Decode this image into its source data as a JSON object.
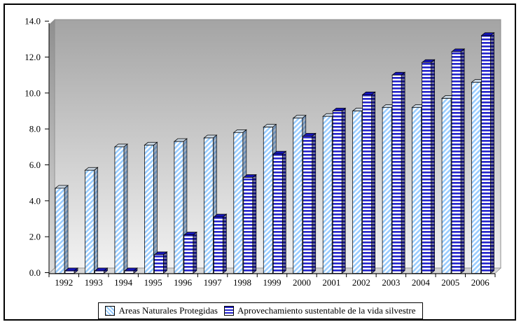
{
  "chart_data": {
    "type": "bar",
    "title": "",
    "categories": [
      "1992",
      "1993",
      "1994",
      "1995",
      "1996",
      "1997",
      "1998",
      "1999",
      "2000",
      "2001",
      "2002",
      "2003",
      "2004",
      "2005",
      "2006"
    ],
    "series": [
      {
        "name": "Areas Naturales Protegidas",
        "values": [
          4.7,
          5.7,
          7.0,
          7.1,
          7.3,
          7.5,
          7.8,
          8.1,
          8.6,
          8.7,
          9.0,
          9.2,
          9.2,
          9.7,
          10.6
        ],
        "pattern": "diagonal-stripes"
      },
      {
        "name": "Aprovechamiento sustentable de la vida silvestre",
        "values": [
          0.1,
          0.1,
          0.1,
          1.0,
          2.1,
          3.1,
          5.3,
          6.6,
          7.6,
          9.0,
          9.9,
          11.0,
          11.7,
          12.3,
          13.2
        ],
        "pattern": "horizontal-stripes"
      }
    ],
    "xlabel": "",
    "ylabel": "",
    "ylim": [
      0,
      14
    ],
    "ytick_step": 2,
    "ytick_labels": [
      "0.0",
      "2.0",
      "4.0",
      "6.0",
      "8.0",
      "10.0",
      "12.0",
      "14.0"
    ],
    "grid": false,
    "legend_position": "bottom",
    "style": "3d-clustered-bars-gray-gradient-wall"
  },
  "colors": {
    "series1_stripe": "#99CCFF",
    "series1_cap": "#C9D6E2",
    "series1_side_overlay": "rgba(55,75,105,0.45)",
    "series2_stripe": "#2323CC",
    "series2_cap": "#1515B8",
    "series2_side_overlay": "rgba(0,0,70,0.55)",
    "wall_top": "#A4A4A4",
    "wall_bottom": "#F2F2F2",
    "side_top": "#8F8F8F",
    "side_bottom": "#DCDCDC",
    "floor": "#D6D6D6",
    "axis": "#000000",
    "wall_border": "#8C8C8C"
  }
}
